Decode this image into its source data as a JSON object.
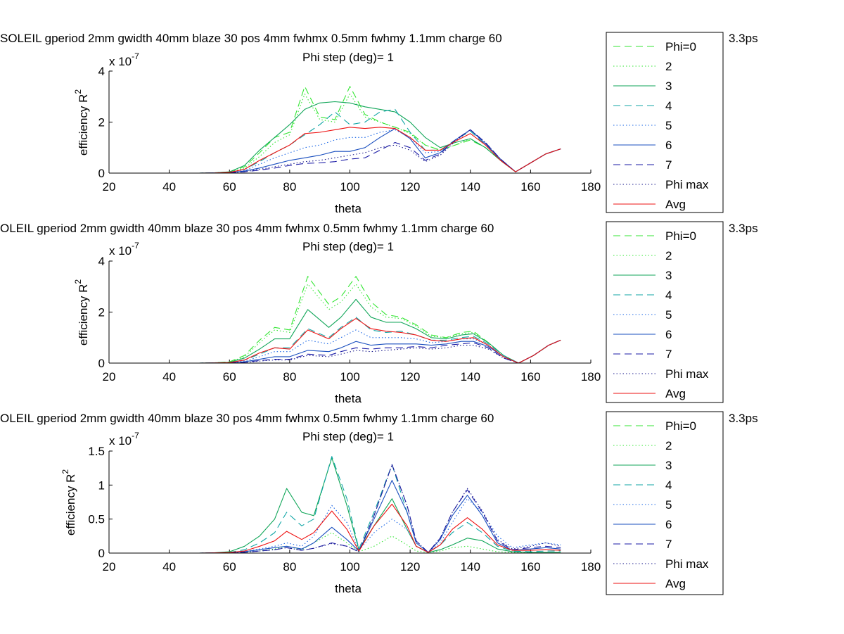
{
  "series_style": [
    {
      "color": "#33e633",
      "dash": "10 6"
    },
    {
      "color": "#33e633",
      "dash": "1.5 3"
    },
    {
      "color": "#11a659",
      "dash": ""
    },
    {
      "color": "#11a6a6",
      "dash": "10 6"
    },
    {
      "color": "#1a66e6",
      "dash": "1.5 3"
    },
    {
      "color": "#1a4fbf",
      "dash": ""
    },
    {
      "color": "#1a1aa6",
      "dash": "10 6"
    },
    {
      "color": "#1a1a8c",
      "dash": "1.5 3"
    },
    {
      "color": "#ee1111",
      "dash": ""
    }
  ],
  "chart_data": [
    {
      "type": "line",
      "title": "SOLEIL gperiod 2mm gwidth 40mm blaze 30 pos 4mm fwhmx 0.5mm fwhmy 1.1mm charge 60",
      "title_tail": "3.3ps",
      "subtitle": "Phi step (deg)= 1",
      "xlabel": "theta",
      "ylabel": "efficiency R",
      "ylabel_sup": "2",
      "yexp": "x 10",
      "yexp_sup": "-7",
      "xlim": [
        20,
        180
      ],
      "ylim": [
        0,
        4
      ],
      "xticks": [
        20,
        40,
        60,
        80,
        100,
        120,
        140,
        160,
        180
      ],
      "yticks": [
        0,
        2,
        4
      ],
      "legend_position": "right",
      "legend": [
        "Phi=0",
        "2",
        "3",
        "4",
        "5",
        "6",
        "7",
        "Phi max",
        "Avg"
      ],
      "x": [
        30,
        40,
        50,
        55,
        60,
        65,
        70,
        75,
        80,
        85,
        90,
        95,
        100,
        105,
        110,
        115,
        120,
        125,
        130,
        135,
        140,
        145,
        150,
        155,
        160,
        165,
        170
      ],
      "series": [
        {
          "name": "Phi=0",
          "values": [
            0,
            0,
            0,
            0.01,
            0.05,
            0.25,
            0.8,
            1.4,
            1.6,
            3.4,
            2.2,
            2.1,
            3.4,
            2.3,
            2.0,
            1.8,
            1.6,
            1.1,
            0.9,
            1.1,
            1.3,
            1.0,
            0.5,
            0.05,
            0.4,
            0.75,
            0.95
          ]
        },
        {
          "name": "2",
          "values": [
            0,
            0,
            0,
            0.01,
            0.04,
            0.2,
            0.65,
            1.2,
            1.5,
            3.1,
            2.1,
            2.0,
            3.1,
            2.2,
            2.0,
            1.8,
            1.55,
            1.1,
            0.9,
            1.1,
            1.35,
            1.0,
            0.5,
            0.05,
            0.4,
            0.75,
            0.95
          ]
        },
        {
          "name": "3",
          "values": [
            0,
            0,
            0,
            0.01,
            0.05,
            0.3,
            0.9,
            1.4,
            1.9,
            2.5,
            2.75,
            2.8,
            2.75,
            2.6,
            2.5,
            2.4,
            2.0,
            1.4,
            1.0,
            1.2,
            1.35,
            1.0,
            0.5,
            0.05,
            0.4,
            0.75,
            0.95
          ]
        },
        {
          "name": "4",
          "values": [
            0,
            0,
            0,
            0.01,
            0.03,
            0.15,
            0.45,
            0.8,
            1.1,
            1.5,
            1.9,
            2.4,
            1.9,
            2.0,
            2.4,
            2.5,
            1.6,
            0.9,
            0.9,
            1.3,
            1.65,
            1.1,
            0.55,
            0.05,
            0.4,
            0.75,
            0.95
          ]
        },
        {
          "name": "5",
          "values": [
            0,
            0,
            0,
            0.005,
            0.02,
            0.1,
            0.35,
            0.6,
            0.8,
            1.0,
            1.1,
            1.3,
            1.4,
            1.4,
            1.6,
            1.7,
            1.4,
            0.8,
            0.85,
            1.3,
            1.7,
            1.15,
            0.55,
            0.05,
            0.4,
            0.75,
            0.95
          ]
        },
        {
          "name": "6",
          "values": [
            0,
            0,
            0,
            0.005,
            0.02,
            0.08,
            0.2,
            0.35,
            0.5,
            0.6,
            0.7,
            0.85,
            0.85,
            1.0,
            1.4,
            1.75,
            1.35,
            0.6,
            0.8,
            1.3,
            1.7,
            1.15,
            0.55,
            0.05,
            0.4,
            0.75,
            0.95
          ]
        },
        {
          "name": "7",
          "values": [
            0,
            0,
            0,
            0.003,
            0.01,
            0.05,
            0.12,
            0.2,
            0.3,
            0.38,
            0.4,
            0.45,
            0.55,
            0.6,
            0.9,
            1.2,
            1.0,
            0.5,
            0.75,
            1.3,
            1.7,
            1.2,
            0.55,
            0.05,
            0.4,
            0.75,
            0.95
          ]
        },
        {
          "name": "Phi max",
          "values": [
            0,
            0,
            0,
            0.003,
            0.01,
            0.05,
            0.15,
            0.25,
            0.35,
            0.45,
            0.5,
            0.6,
            0.7,
            0.8,
            1.0,
            1.1,
            0.9,
            0.45,
            0.7,
            1.25,
            1.7,
            1.2,
            0.55,
            0.05,
            0.4,
            0.75,
            0.95
          ]
        },
        {
          "name": "Avg",
          "values": [
            0,
            0,
            0,
            0.005,
            0.03,
            0.15,
            0.5,
            0.8,
            1.1,
            1.55,
            1.6,
            1.7,
            1.8,
            1.75,
            1.8,
            1.75,
            1.4,
            0.9,
            0.9,
            1.25,
            1.55,
            1.1,
            0.5,
            0.05,
            0.4,
            0.75,
            0.95
          ]
        }
      ]
    },
    {
      "type": "line",
      "title": "OLEIL gperiod 2mm gwidth 40mm blaze 30 pos 4mm fwhmx 0.5mm fwhmy 1.1mm charge 60",
      "title_tail": "3.3ps",
      "subtitle": "Phi step (deg)= 1",
      "xlabel": "theta",
      "ylabel": "efficiency R",
      "ylabel_sup": "2",
      "yexp": "x 10",
      "yexp_sup": "-7",
      "xlim": [
        20,
        180
      ],
      "ylim": [
        0,
        4
      ],
      "xticks": [
        20,
        40,
        60,
        80,
        100,
        120,
        140,
        160,
        180
      ],
      "yticks": [
        0,
        2,
        4
      ],
      "legend_position": "right",
      "legend": [
        "Phi=0",
        "2",
        "3",
        "4",
        "5",
        "6",
        "7",
        "Phi max",
        "Avg"
      ],
      "x": [
        30,
        40,
        50,
        55,
        60,
        65,
        70,
        75,
        80,
        86,
        93,
        97,
        102,
        107,
        112,
        117,
        122,
        127,
        132,
        137,
        141,
        146,
        151,
        156,
        161,
        166,
        170
      ],
      "series": [
        {
          "name": "Phi=0",
          "values": [
            0,
            0,
            0,
            0.01,
            0.05,
            0.3,
            0.9,
            1.4,
            1.3,
            3.4,
            2.3,
            2.6,
            3.4,
            2.4,
            1.9,
            1.8,
            1.5,
            1.1,
            1.0,
            1.2,
            1.25,
            0.8,
            0.3,
            0.0,
            0.3,
            0.7,
            0.9
          ]
        },
        {
          "name": "2",
          "values": [
            0,
            0,
            0,
            0.01,
            0.04,
            0.25,
            0.8,
            1.3,
            1.2,
            3.1,
            2.1,
            2.4,
            3.1,
            2.2,
            1.8,
            1.75,
            1.45,
            1.05,
            1.0,
            1.15,
            1.2,
            0.8,
            0.3,
            0.0,
            0.3,
            0.7,
            0.9
          ]
        },
        {
          "name": "3",
          "values": [
            0,
            0,
            0,
            0.01,
            0.03,
            0.2,
            0.55,
            0.95,
            0.95,
            2.1,
            1.4,
            1.8,
            2.5,
            1.8,
            1.6,
            1.6,
            1.35,
            1.0,
            0.95,
            1.1,
            1.15,
            0.8,
            0.3,
            0.0,
            0.3,
            0.7,
            0.9
          ]
        },
        {
          "name": "4",
          "values": [
            0,
            0,
            0,
            0.005,
            0.02,
            0.12,
            0.35,
            0.6,
            0.6,
            1.35,
            1.0,
            1.4,
            1.8,
            1.3,
            1.2,
            1.25,
            1.1,
            0.9,
            0.9,
            1.0,
            1.05,
            0.75,
            0.3,
            0.0,
            0.3,
            0.7,
            0.9
          ]
        },
        {
          "name": "5",
          "values": [
            0,
            0,
            0,
            0.005,
            0.015,
            0.08,
            0.25,
            0.45,
            0.45,
            0.9,
            0.75,
            1.0,
            1.3,
            1.0,
            1.0,
            1.0,
            0.95,
            0.8,
            0.85,
            0.95,
            0.95,
            0.7,
            0.25,
            0.0,
            0.3,
            0.7,
            0.9
          ]
        },
        {
          "name": "6",
          "values": [
            0,
            0,
            0,
            0.003,
            0.01,
            0.05,
            0.15,
            0.25,
            0.25,
            0.5,
            0.45,
            0.6,
            0.85,
            0.7,
            0.75,
            0.75,
            0.75,
            0.7,
            0.75,
            0.85,
            0.85,
            0.65,
            0.25,
            0.0,
            0.3,
            0.7,
            0.9
          ]
        },
        {
          "name": "7",
          "values": [
            0,
            0,
            0,
            0.002,
            0.008,
            0.03,
            0.1,
            0.15,
            0.15,
            0.35,
            0.3,
            0.45,
            0.6,
            0.55,
            0.6,
            0.6,
            0.65,
            0.6,
            0.7,
            0.75,
            0.8,
            0.6,
            0.2,
            0.0,
            0.3,
            0.7,
            0.9
          ]
        },
        {
          "name": "Phi max",
          "values": [
            0,
            0,
            0,
            0.002,
            0.005,
            0.02,
            0.08,
            0.12,
            0.12,
            0.3,
            0.25,
            0.35,
            0.5,
            0.45,
            0.5,
            0.55,
            0.6,
            0.55,
            0.6,
            0.7,
            0.7,
            0.55,
            0.2,
            0.0,
            0.3,
            0.7,
            0.9
          ]
        },
        {
          "name": "Avg",
          "values": [
            0,
            0,
            0,
            0.005,
            0.02,
            0.12,
            0.4,
            0.6,
            0.55,
            1.3,
            0.95,
            1.35,
            1.75,
            1.35,
            1.25,
            1.2,
            1.1,
            0.9,
            0.85,
            0.95,
            1.0,
            0.7,
            0.25,
            0.0,
            0.3,
            0.7,
            0.9
          ]
        }
      ]
    },
    {
      "type": "line",
      "title": "OLEIL gperiod 2mm gwidth 40mm blaze 30 pos 4mm fwhmx 0.5mm fwhmy 1.1mm charge 60",
      "title_tail": "3.3ps",
      "subtitle": "Phi step (deg)= 1",
      "xlabel": "theta",
      "ylabel": "efficiency R",
      "ylabel_sup": "2",
      "yexp": "x 10",
      "yexp_sup": "-7",
      "xlim": [
        20,
        180
      ],
      "ylim": [
        0,
        1.5
      ],
      "xticks": [
        20,
        40,
        60,
        80,
        100,
        120,
        140,
        160,
        180
      ],
      "yticks": [
        0,
        0.5,
        1,
        1.5
      ],
      "legend_position": "right",
      "legend": [
        "Phi=0",
        "2",
        "3",
        "4",
        "5",
        "6",
        "7",
        "Phi max",
        "Avg"
      ],
      "x": [
        30,
        40,
        50,
        55,
        60,
        65,
        70,
        75,
        79,
        84,
        88,
        94,
        99,
        103,
        108,
        114,
        119,
        122,
        126,
        130,
        134,
        139,
        144,
        149,
        154,
        160,
        165,
        170
      ],
      "series": [
        {
          "name": "Phi=0",
          "values": [
            0,
            0,
            0,
            0,
            0,
            0,
            0,
            0,
            0,
            0,
            0,
            0,
            0,
            0,
            0,
            0,
            0,
            0,
            0,
            0,
            0,
            0,
            0,
            0,
            0,
            0,
            0,
            0
          ]
        },
        {
          "name": "2",
          "values": [
            0,
            0,
            0,
            0.002,
            0.005,
            0.01,
            0.03,
            0.06,
            0.1,
            0.05,
            0.15,
            0.3,
            0.15,
            0.02,
            0.1,
            0.25,
            0.12,
            0.03,
            0.01,
            0.03,
            0.08,
            0.1,
            0.06,
            0.02,
            0.01,
            0.01,
            0.01,
            0.01
          ]
        },
        {
          "name": "3",
          "values": [
            0,
            0,
            0,
            0.005,
            0.02,
            0.1,
            0.25,
            0.5,
            0.95,
            0.6,
            0.55,
            1.4,
            0.7,
            0.05,
            0.4,
            0.8,
            0.35,
            0.1,
            0.01,
            0.05,
            0.12,
            0.22,
            0.18,
            0.06,
            0.02,
            0.01,
            0.01,
            0.01
          ]
        },
        {
          "name": "4",
          "values": [
            0,
            0,
            0,
            0.005,
            0.01,
            0.05,
            0.15,
            0.3,
            0.6,
            0.4,
            0.5,
            1.42,
            0.8,
            0.06,
            0.6,
            1.3,
            0.6,
            0.15,
            0.01,
            0.12,
            0.3,
            0.45,
            0.3,
            0.1,
            0.03,
            0.02,
            0.03,
            0.03
          ]
        },
        {
          "name": "5",
          "values": [
            0,
            0,
            0,
            0.002,
            0.005,
            0.02,
            0.06,
            0.1,
            0.15,
            0.1,
            0.25,
            0.7,
            0.45,
            0.04,
            0.3,
            0.5,
            0.35,
            0.1,
            0.01,
            0.15,
            0.45,
            0.8,
            0.6,
            0.25,
            0.08,
            0.12,
            0.15,
            0.12
          ]
        },
        {
          "name": "6",
          "values": [
            0,
            0,
            0,
            0.002,
            0.005,
            0.02,
            0.05,
            0.08,
            0.1,
            0.06,
            0.15,
            0.38,
            0.2,
            0.03,
            0.5,
            1.07,
            0.6,
            0.15,
            0.01,
            0.2,
            0.55,
            0.85,
            0.55,
            0.15,
            0.04,
            0.06,
            0.08,
            0.06
          ]
        },
        {
          "name": "7",
          "values": [
            0,
            0,
            0,
            0.001,
            0.003,
            0.01,
            0.03,
            0.05,
            0.08,
            0.04,
            0.07,
            0.15,
            0.1,
            0.02,
            0.55,
            1.3,
            0.7,
            0.18,
            0.01,
            0.22,
            0.6,
            0.93,
            0.6,
            0.18,
            0.05,
            0.08,
            0.1,
            0.08
          ]
        },
        {
          "name": "Phi max",
          "values": [
            0,
            0,
            0,
            0.001,
            0.003,
            0.01,
            0.03,
            0.05,
            0.08,
            0.04,
            0.07,
            0.14,
            0.1,
            0.02,
            0.55,
            1.3,
            0.7,
            0.18,
            0.01,
            0.22,
            0.6,
            0.95,
            0.62,
            0.2,
            0.06,
            0.1,
            0.15,
            0.1
          ]
        },
        {
          "name": "Avg",
          "values": [
            0,
            0,
            0,
            0.003,
            0.008,
            0.03,
            0.1,
            0.18,
            0.32,
            0.2,
            0.3,
            0.62,
            0.35,
            0.03,
            0.4,
            0.72,
            0.4,
            0.1,
            0.01,
            0.12,
            0.35,
            0.52,
            0.35,
            0.12,
            0.04,
            0.04,
            0.05,
            0.04
          ]
        }
      ]
    }
  ]
}
